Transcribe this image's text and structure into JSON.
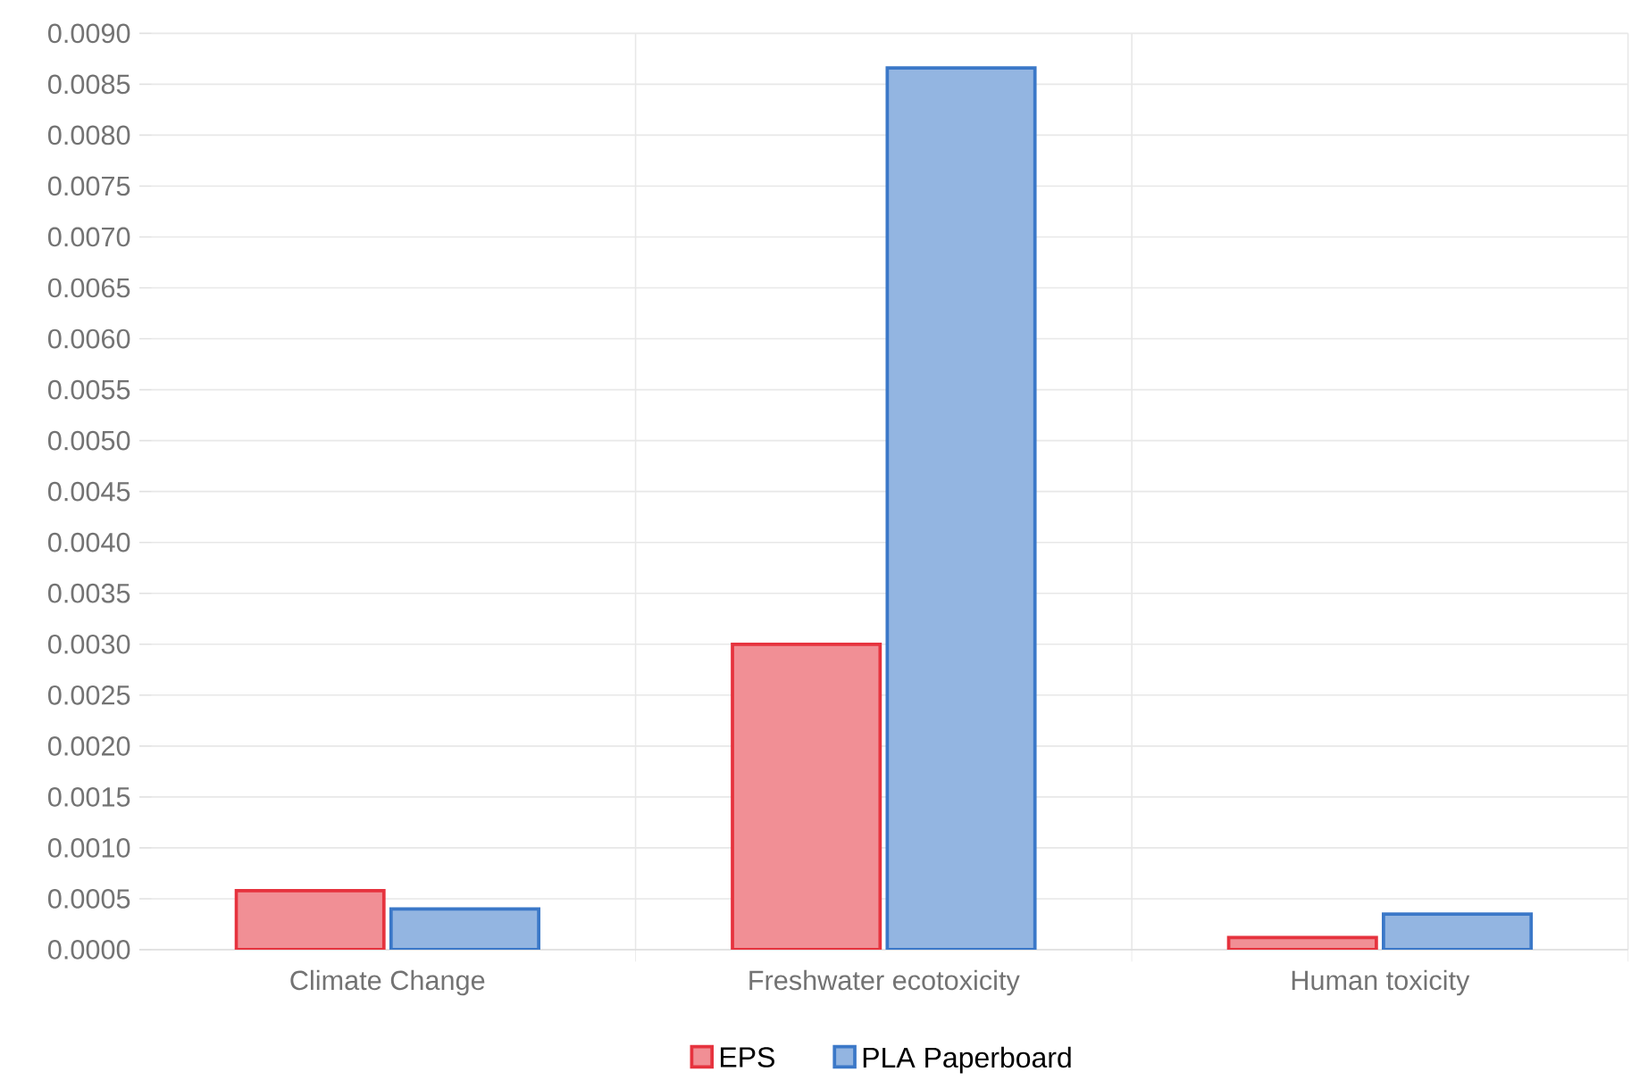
{
  "chart_data": {
    "type": "bar",
    "categories": [
      "Climate Change",
      "Freshwater ecotoxicity",
      "Human toxicity"
    ],
    "series": [
      {
        "name": "EPS",
        "color": "#f18f95",
        "values": [
          0.00058,
          0.003,
          0.00012
        ]
      },
      {
        "name": "PLA Paperboard",
        "color": "#93b5e1",
        "values": [
          0.0004,
          0.00866,
          0.00035
        ]
      }
    ],
    "ylim": [
      0,
      0.009
    ],
    "yticks": [
      {
        "value": 0,
        "label": "0.0000"
      },
      {
        "value": 0.0005,
        "label": "0.0005"
      },
      {
        "value": 0.001,
        "label": "0.0010"
      },
      {
        "value": 0.0015,
        "label": "0.0015"
      },
      {
        "value": 0.002,
        "label": "0.0020"
      },
      {
        "value": 0.0025,
        "label": "0.0025"
      },
      {
        "value": 0.003,
        "label": "0.0030"
      },
      {
        "value": 0.0035,
        "label": "0.0035"
      },
      {
        "value": 0.004,
        "label": "0.0040"
      },
      {
        "value": 0.0045,
        "label": "0.0045"
      },
      {
        "value": 0.005,
        "label": "0.0050"
      },
      {
        "value": 0.0055,
        "label": "0.0055"
      },
      {
        "value": 0.006,
        "label": "0.0060"
      },
      {
        "value": 0.0065,
        "label": "0.0065"
      },
      {
        "value": 0.007,
        "label": "0.0070"
      },
      {
        "value": 0.0075,
        "label": "0.0075"
      },
      {
        "value": 0.008,
        "label": "0.0080"
      },
      {
        "value": 0.0085,
        "label": "0.0085"
      },
      {
        "value": 0.009,
        "label": "0.0090"
      }
    ],
    "grid": true,
    "legend": "bottom"
  }
}
